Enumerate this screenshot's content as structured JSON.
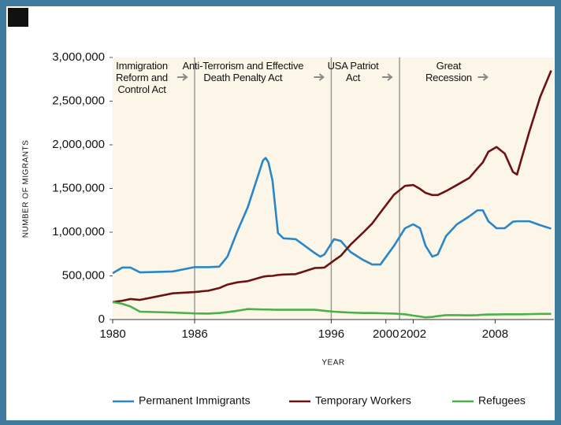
{
  "chart_data": {
    "type": "line",
    "x_label": "YEAR",
    "y_label": "NUMBER OF MIGRANTS",
    "x": [
      1980.0,
      1980.7,
      1981.3,
      1982.0,
      1984.4,
      1986.0,
      1987.0,
      1987.8,
      1988.4,
      1989.1,
      1989.9,
      1991.0,
      1991.2,
      1991.4,
      1991.7,
      1992.1,
      1992.5,
      1993.4,
      1994.8,
      1995.2,
      1995.5,
      1996.2,
      1996.7,
      1997.4,
      1998.3,
      1999.0,
      1999.6,
      2000.6,
      2001.4,
      2002.0,
      2002.5,
      2002.9,
      2003.4,
      2003.8,
      2004.4,
      2005.2,
      2006.1,
      2006.7,
      2007.1,
      2007.5,
      2008.1,
      2008.7,
      2009.3,
      2009.6,
      2009.8,
      2010.5,
      2011.3,
      2012.1
    ],
    "series": [
      {
        "name": "Permanent Immigrants",
        "color": "#2a86c6",
        "values": [
          530000,
          595000,
          595000,
          540000,
          550000,
          600000,
          600000,
          605000,
          720000,
          1000000,
          1290000,
          1820000,
          1850000,
          1800000,
          1590000,
          990000,
          930000,
          920000,
          760000,
          720000,
          745000,
          920000,
          900000,
          775000,
          685000,
          630000,
          630000,
          845000,
          1045000,
          1090000,
          1045000,
          845000,
          720000,
          745000,
          955000,
          1090000,
          1180000,
          1250000,
          1250000,
          1125000,
          1045000,
          1045000,
          1120000,
          1125000,
          1125000,
          1125000,
          1080000,
          1040000
        ]
      },
      {
        "name": "Temporary Workers",
        "color": "#6b1212",
        "values": [
          200000,
          215000,
          235000,
          225000,
          300000,
          315000,
          330000,
          360000,
          400000,
          425000,
          440000,
          490000,
          495000,
          498000,
          500000,
          510000,
          515000,
          520000,
          590000,
          592000,
          595000,
          675000,
          730000,
          855000,
          990000,
          1100000,
          1225000,
          1430000,
          1530000,
          1540000,
          1495000,
          1450000,
          1425000,
          1425000,
          1470000,
          1540000,
          1620000,
          1730000,
          1800000,
          1920000,
          1975000,
          1900000,
          1690000,
          1660000,
          1770000,
          2150000,
          2550000,
          2850000
        ]
      },
      {
        "name": "Refugees",
        "color": "#4cb04a",
        "values": [
          200000,
          180000,
          150000,
          90000,
          80000,
          70000,
          68000,
          75000,
          85000,
          100000,
          120000,
          115000,
          115000,
          115000,
          113000,
          112000,
          112000,
          112000,
          112000,
          105000,
          100000,
          90000,
          85000,
          80000,
          75000,
          75000,
          72000,
          68000,
          60000,
          45000,
          35000,
          25000,
          30000,
          40000,
          50000,
          50000,
          48000,
          50000,
          55000,
          58000,
          58000,
          60000,
          60000,
          60000,
          60000,
          62000,
          65000,
          65000
        ]
      }
    ],
    "xlim": [
      1980,
      2012.3
    ],
    "ylim": [
      0,
      3000000
    ],
    "xticks": [
      1980,
      1986,
      1996,
      2000,
      2002,
      2008
    ],
    "yticks": [
      0,
      {
        "value": 500000,
        "label": "500,000"
      },
      {
        "value": 1000000,
        "label": "1,000,000"
      },
      {
        "value": 1500000,
        "label": "1,500,000"
      },
      {
        "value": 2000000,
        "label": "2,000,000"
      },
      {
        "value": 2500000,
        "label": "2,500,000"
      },
      {
        "value": 3000000,
        "label": "3,000,000"
      }
    ],
    "vlines": [
      1986,
      1996,
      2001
    ],
    "annotations": [
      {
        "text": "Immigration Reform and Control Act",
        "x": 1986
      },
      {
        "text": "Anti-Terrorism and Effective Death Penalty Act",
        "x": 1996
      },
      {
        "text": "USA Patriot Act",
        "x": 2001
      },
      {
        "text": "Great Recession",
        "x": 2008
      }
    ],
    "grid": false,
    "legend": "bottom"
  }
}
